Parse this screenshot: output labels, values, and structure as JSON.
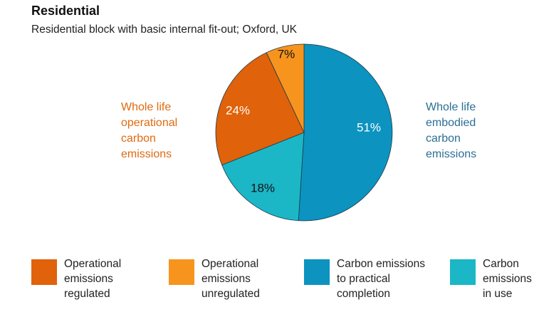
{
  "chart_data": {
    "type": "pie",
    "title": "Residential",
    "subtitle": "Residential block with basic internal fit-out; Oxford, UK",
    "slices": [
      {
        "name": "Carbon emissions to practical completion",
        "value": 51,
        "label": "51%",
        "color": "#0C93BF",
        "label_color": "#ffffff"
      },
      {
        "name": "Carbon emissions in use",
        "value": 18,
        "label": "18%",
        "color": "#1BB7C6",
        "label_color": "#111111"
      },
      {
        "name": "Operational emissions regulated",
        "value": 24,
        "label": "24%",
        "color": "#E0620A",
        "label_color": "#ffffff"
      },
      {
        "name": "Operational emissions unregulated",
        "value": 7,
        "label": "7%",
        "color": "#F7941D",
        "label_color": "#111111"
      }
    ],
    "group_labels": {
      "operational": [
        "Whole life",
        "operational",
        "carbon",
        "emissions"
      ],
      "embodied": [
        "Whole life",
        "embodied",
        "carbon",
        "emissions"
      ]
    },
    "legend": [
      {
        "lines": [
          "Operational",
          "emissions",
          "regulated"
        ],
        "color": "#E0620A"
      },
      {
        "lines": [
          "Operational",
          "emissions",
          "unregulated"
        ],
        "color": "#F7941D"
      },
      {
        "lines": [
          "Carbon emissions",
          "to practical",
          "completion"
        ],
        "color": "#0C93BF"
      },
      {
        "lines": [
          "Carbon",
          "emissions",
          "in use"
        ],
        "color": "#1BB7C6"
      }
    ],
    "legend_position": "bottom",
    "colors": {
      "operational_label": "#E06A0F",
      "embodied_label": "#2A6F95"
    }
  }
}
